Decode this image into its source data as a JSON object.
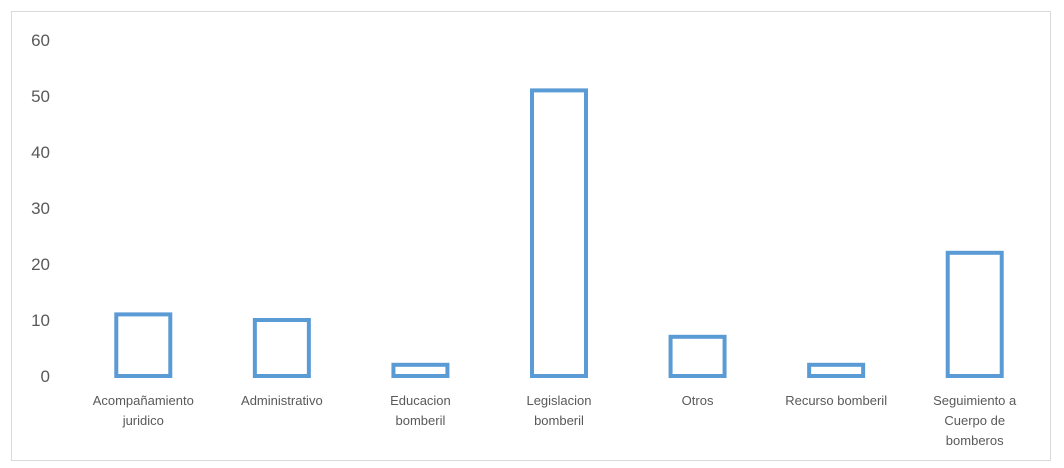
{
  "chart_data": {
    "type": "bar",
    "title": "",
    "xlabel": "",
    "ylabel": "",
    "categories": [
      [
        "Acompañamiento",
        "juridico"
      ],
      [
        "Administrativo"
      ],
      [
        "Educacion",
        "bomberil"
      ],
      [
        "Legislacion",
        "bomberil"
      ],
      [
        "Otros"
      ],
      [
        "Recurso bomberil"
      ],
      [
        "Seguimiento a",
        "Cuerpo de",
        "bomberos"
      ]
    ],
    "values": [
      11,
      10,
      2,
      51,
      7,
      2,
      22
    ],
    "ylim": [
      0,
      60
    ],
    "yticks": [
      0,
      10,
      20,
      30,
      40,
      50,
      60
    ],
    "grid": false,
    "legend": "none",
    "bar_style": "outline",
    "colors": {
      "bar_stroke": "#5b9bd5",
      "text": "#595959",
      "border": "#d9d9d9"
    }
  }
}
